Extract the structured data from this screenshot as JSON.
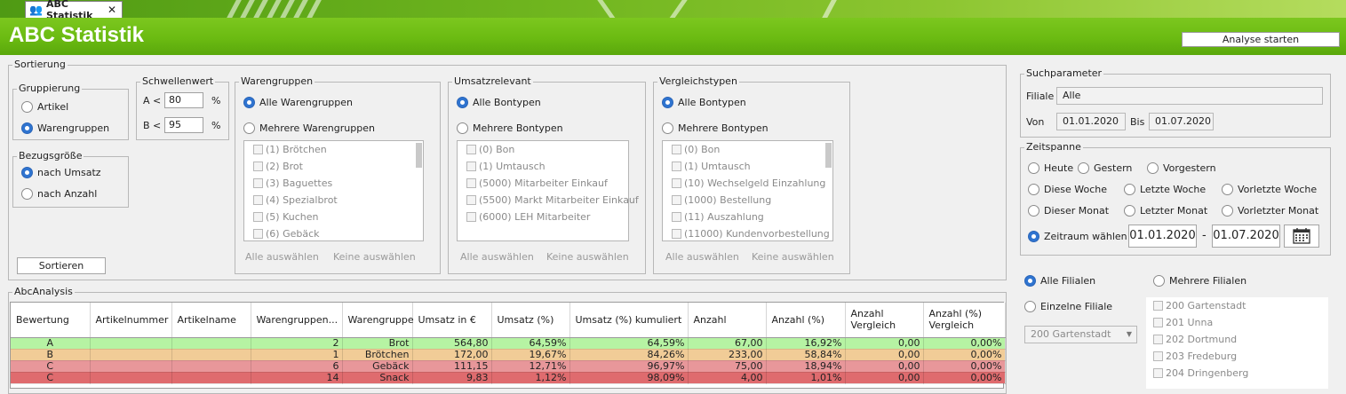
{
  "tab": {
    "label": "ABC Statistik",
    "close": "✕"
  },
  "title": "ABC Statistik",
  "analyse_button": "Analyse starten",
  "sortierung": {
    "legend": "Sortierung",
    "gruppierung": {
      "legend": "Gruppierung",
      "options": [
        "Artikel",
        "Warengruppen"
      ],
      "selected": 1
    },
    "schwellenwert": {
      "legend": "Schwellenwert",
      "a_label": "A <",
      "a_value": "80",
      "b_label": "B <",
      "b_value": "95",
      "unit": "%"
    },
    "bezugsgroesse": {
      "legend": "Bezugsgröße",
      "options": [
        "nach Umsatz",
        "nach Anzahl"
      ],
      "selected": 0
    },
    "sort_button": "Sortieren",
    "warengruppen": {
      "legend": "Warengruppen",
      "opt_all": "Alle Warengruppen",
      "opt_multi": "Mehrere Warengruppen",
      "items": [
        "(1) Brötchen",
        "(2) Brot",
        "(3) Baguettes",
        "(4) Spezialbrot",
        "(5) Kuchen",
        "(6) Gebäck"
      ],
      "select_all": "Alle auswählen",
      "select_none": "Keine auswählen"
    },
    "umsatzrelevant": {
      "legend": "Umsatzrelevant",
      "opt_all": "Alle Bontypen",
      "opt_multi": "Mehrere Bontypen",
      "items": [
        "(0) Bon",
        "(1) Umtausch",
        "(5000) Mitarbeiter Einkauf",
        "(5500) Markt Mitarbeiter Einkauf",
        "(6000) LEH Mitarbeiter"
      ],
      "select_all": "Alle auswählen",
      "select_none": "Keine auswählen"
    },
    "vergleichstypen": {
      "legend": "Vergleichstypen",
      "opt_all": "Alle Bontypen",
      "opt_multi": "Mehrere Bontypen",
      "items": [
        "(0) Bon",
        "(1) Umtausch",
        "(10) Wechselgeld Einzahlung",
        "(1000) Bestellung",
        "(11) Auszahlung",
        "(11000) Kundenvorbestellung"
      ],
      "select_all": "Alle auswählen",
      "select_none": "Keine auswählen"
    }
  },
  "grid": {
    "legend": "AbcAnalysis",
    "columns": [
      "Bewertung",
      "Artikelnummer",
      "Artikelname",
      "Warengruppen...",
      "Warengruppe",
      "Umsatz in €",
      "Umsatz (%)",
      "Umsatz (%) kumuliert",
      "Anzahl",
      "Anzahl (%)",
      "Anzahl Vergleich",
      "Anzahl (%) Vergleich"
    ],
    "rows": [
      {
        "bewertung": "A",
        "nummer": "",
        "name": "",
        "wgnr": "2",
        "wg": "Brot",
        "umsatz": "564,80",
        "umsatz_pct": "64,59%",
        "kumuliert": "64,59%",
        "anzahl": "67,00",
        "anzahl_pct": "16,92%",
        "vergleich": "0,00",
        "vergleich_pct": "0,00%",
        "color": "#b6f3a3"
      },
      {
        "bewertung": "B",
        "nummer": "",
        "name": "",
        "wgnr": "1",
        "wg": "Brötchen",
        "umsatz": "172,00",
        "umsatz_pct": "19,67%",
        "kumuliert": "84,26%",
        "anzahl": "233,00",
        "anzahl_pct": "58,84%",
        "vergleich": "0,00",
        "vergleich_pct": "0,00%",
        "color": "#f1cc97"
      },
      {
        "bewertung": "C",
        "nummer": "",
        "name": "",
        "wgnr": "6",
        "wg": "Gebäck",
        "umsatz": "111,15",
        "umsatz_pct": "12,71%",
        "kumuliert": "96,97%",
        "anzahl": "75,00",
        "anzahl_pct": "18,94%",
        "vergleich": "0,00",
        "vergleich_pct": "0,00%",
        "color": "#e8979a"
      },
      {
        "bewertung": "C",
        "nummer": "",
        "name": "",
        "wgnr": "14",
        "wg": "Snack",
        "umsatz": "9,83",
        "umsatz_pct": "1,12%",
        "kumuliert": "98,09%",
        "anzahl": "4,00",
        "anzahl_pct": "1,01%",
        "vergleich": "0,00",
        "vergleich_pct": "0,00%",
        "color": "#df6b6e"
      }
    ]
  },
  "suchparameter": {
    "legend": "Suchparameter",
    "filiale_label": "Filiale",
    "filiale_value": "Alle",
    "von_label": "Von",
    "von_value": "01.01.2020",
    "bis_label": "Bis",
    "bis_value": "01.07.2020"
  },
  "zeitspanne": {
    "legend": "Zeitspanne",
    "heute": "Heute",
    "gestern": "Gestern",
    "vorgestern": "Vorgestern",
    "diese_woche": "Diese Woche",
    "letzte_woche": "Letzte Woche",
    "vorletzte_woche": "Vorletzte Woche",
    "dieser_monat": "Dieser Monat",
    "letzter_monat": "Letzter Monat",
    "vorletzter_monat": "Vorletzter Monat",
    "zeitraum": "Zeitraum wählen",
    "from": "01.01.2020",
    "separator": "-",
    "to": "01.07.2020"
  },
  "filialen": {
    "alle": "Alle Filialen",
    "mehrere": "Mehrere Filialen",
    "einzelne": "Einzelne Filiale",
    "combo_value": "200 Gartenstadt",
    "items": [
      "200 Gartenstadt",
      "201 Unna",
      "202 Dortmund",
      "203 Fredeburg",
      "204 Dringenberg"
    ]
  }
}
